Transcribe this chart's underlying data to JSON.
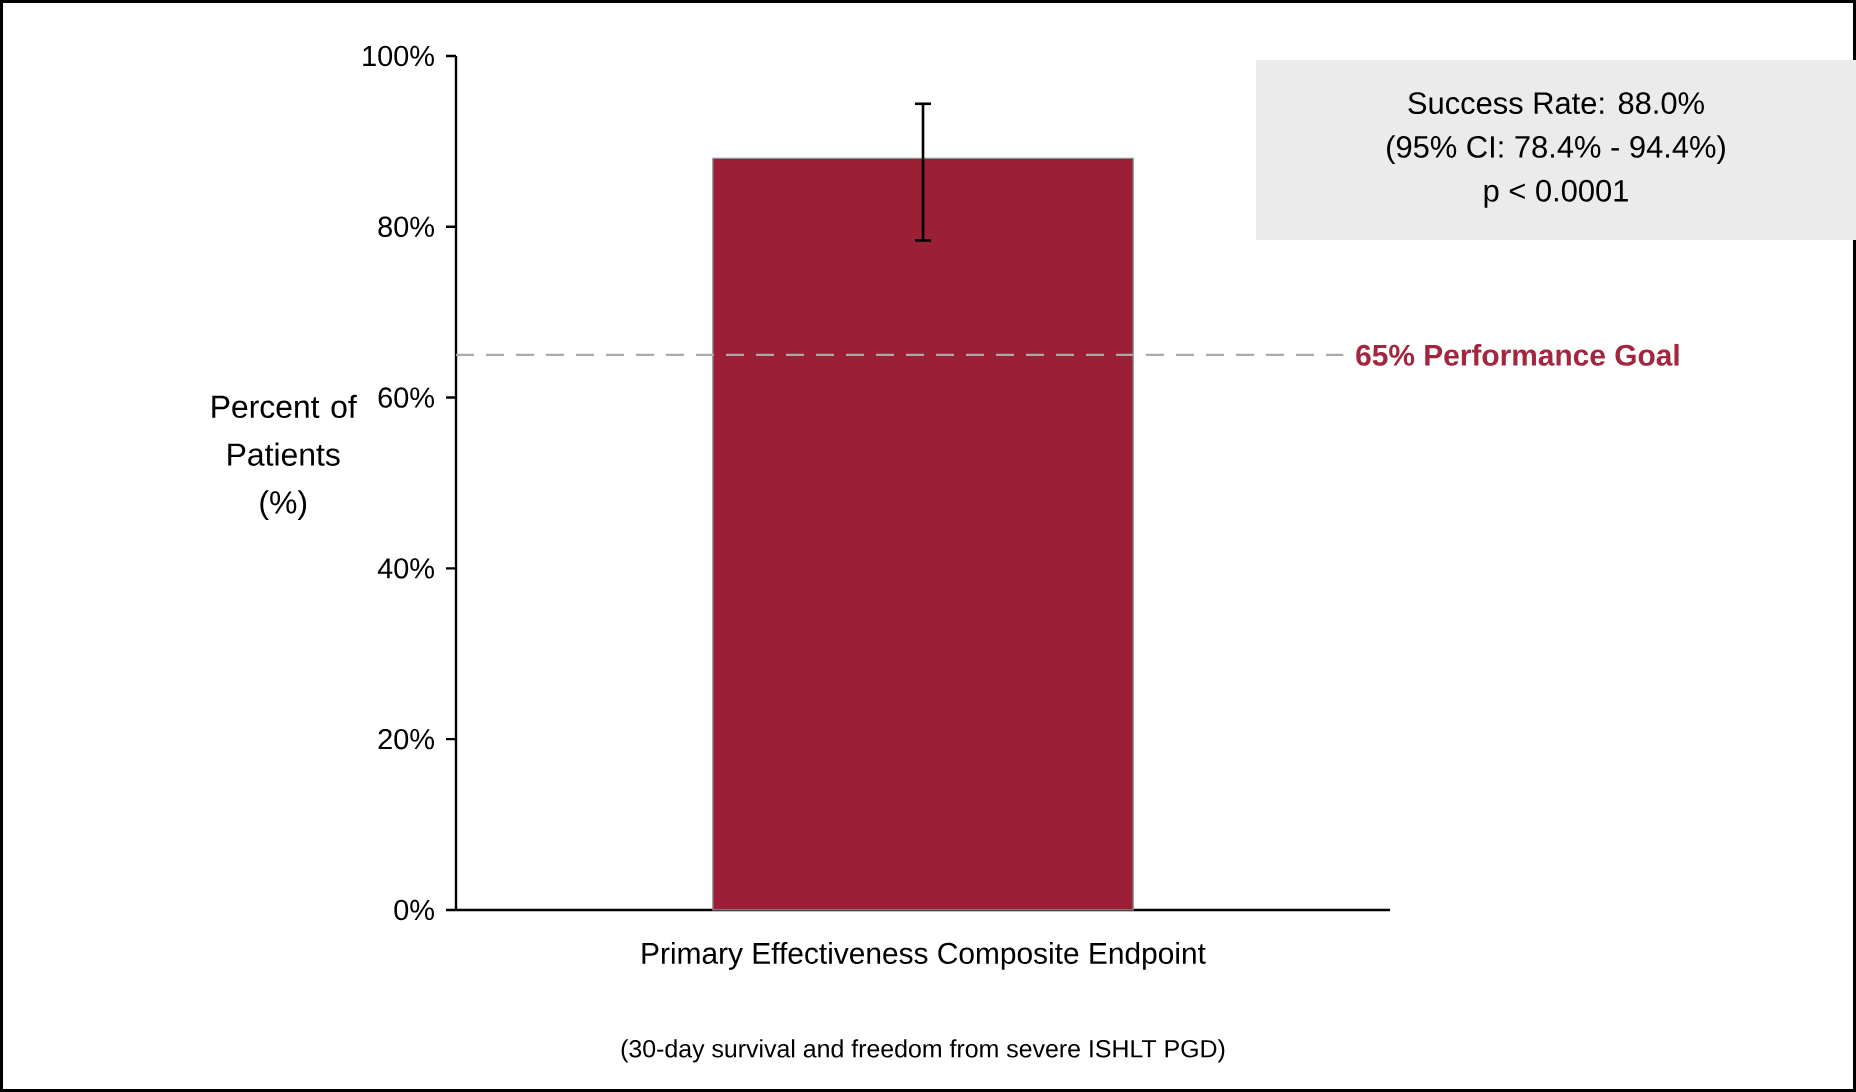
{
  "chart_data": {
    "type": "bar",
    "categories": [
      "Primary Effectiveness Composite Endpoint"
    ],
    "values": [
      88.0
    ],
    "errors": [
      [
        78.4,
        94.4
      ]
    ],
    "color": "#9b1f35",
    "xlabel": "(30-day survival and freedom from severe ISHLT PGD)",
    "ylabel": "Percent of Patients (%)",
    "ylim": [
      0,
      100
    ],
    "yticks": [
      {
        "value": 0,
        "label": "0%"
      },
      {
        "value": 20,
        "label": "20%"
      },
      {
        "value": 40,
        "label": "40%"
      },
      {
        "value": 60,
        "label": "60%"
      },
      {
        "value": 80,
        "label": "80%"
      },
      {
        "value": 100,
        "label": "100%"
      }
    ],
    "ref_lines": [
      {
        "axis": "y",
        "value": 65,
        "label": "65% Performance Goal",
        "color": "#aaaaaa",
        "line_style": "dashed"
      }
    ],
    "annotations": [
      "Success Rate: 88.0%",
      "(95% CI: 78.4% - 94.4%)",
      "p < 0.0001"
    ],
    "grid": false
  }
}
